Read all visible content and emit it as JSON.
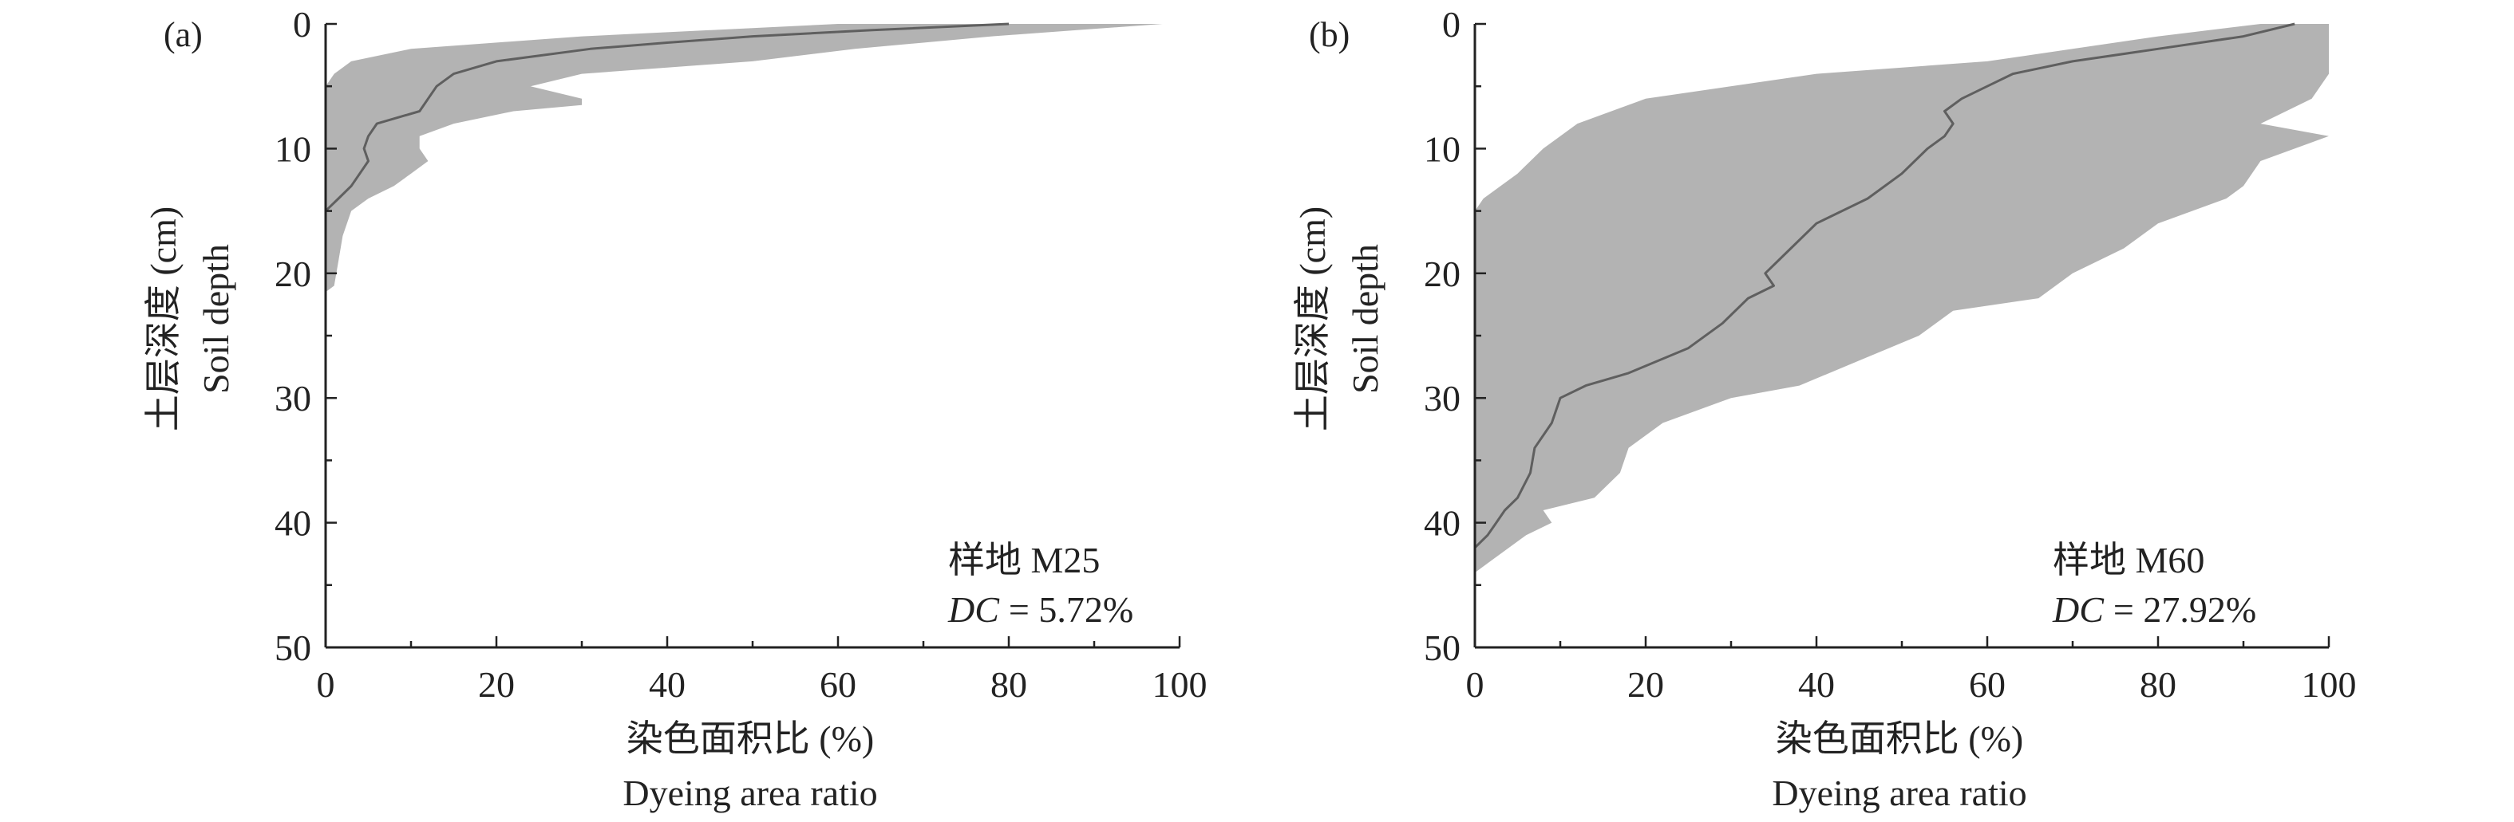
{
  "colors": {
    "band": "#b3b3b3",
    "mean_line": "#5f5f5f",
    "axis": "#222222",
    "background": "#ffffff"
  },
  "chart_data": [
    {
      "type": "area",
      "panel_label": "(a)",
      "plot": "样地 M25",
      "dc_label": "DC",
      "dc_value": "= 5.72%",
      "xlabel_cn": "染色面积比 (%)",
      "xlabel_en": "Dyeing area ratio",
      "ylabel_cn": "土层深度 (cm)",
      "ylabel_en": "Soil depth",
      "xlim": [
        0,
        100
      ],
      "ylim": [
        0,
        50
      ],
      "y_inverted": true,
      "x_ticks": [
        "0",
        "20",
        "40",
        "60",
        "80",
        "100"
      ],
      "y_ticks": [
        "0",
        "10",
        "20",
        "30",
        "40",
        "50"
      ],
      "grid": false,
      "mean_profile": [
        {
          "depth": 0,
          "ratio": 80
        },
        {
          "depth": 0.5,
          "ratio": 64
        },
        {
          "depth": 1,
          "ratio": 50
        },
        {
          "depth": 1.5,
          "ratio": 40
        },
        {
          "depth": 2,
          "ratio": 31
        },
        {
          "depth": 3,
          "ratio": 20
        },
        {
          "depth": 4,
          "ratio": 15
        },
        {
          "depth": 5,
          "ratio": 13
        },
        {
          "depth": 6,
          "ratio": 12
        },
        {
          "depth": 7,
          "ratio": 11
        },
        {
          "depth": 8,
          "ratio": 6
        },
        {
          "depth": 9,
          "ratio": 5
        },
        {
          "depth": 10,
          "ratio": 4.5
        },
        {
          "depth": 11,
          "ratio": 5
        },
        {
          "depth": 12,
          "ratio": 4
        },
        {
          "depth": 13,
          "ratio": 3
        },
        {
          "depth": 14,
          "ratio": 1.5
        },
        {
          "depth": 15,
          "ratio": 0
        }
      ],
      "band_max": [
        {
          "depth": 0,
          "ratio": 98
        },
        {
          "depth": 0.5,
          "ratio": 88
        },
        {
          "depth": 1,
          "ratio": 78
        },
        {
          "depth": 1.5,
          "ratio": 70
        },
        {
          "depth": 2,
          "ratio": 62
        },
        {
          "depth": 3,
          "ratio": 50
        },
        {
          "depth": 3.5,
          "ratio": 40
        },
        {
          "depth": 4,
          "ratio": 30
        },
        {
          "depth": 5,
          "ratio": 24
        },
        {
          "depth": 6,
          "ratio": 30
        },
        {
          "depth": 6.5,
          "ratio": 30
        },
        {
          "depth": 7,
          "ratio": 22
        },
        {
          "depth": 8,
          "ratio": 15
        },
        {
          "depth": 9,
          "ratio": 11
        },
        {
          "depth": 10,
          "ratio": 11
        },
        {
          "depth": 11,
          "ratio": 12
        },
        {
          "depth": 12,
          "ratio": 10
        },
        {
          "depth": 13,
          "ratio": 8
        },
        {
          "depth": 14,
          "ratio": 5
        },
        {
          "depth": 15,
          "ratio": 3
        },
        {
          "depth": 17,
          "ratio": 2
        },
        {
          "depth": 19,
          "ratio": 1.5
        },
        {
          "depth": 21,
          "ratio": 1
        },
        {
          "depth": 21.5,
          "ratio": 0
        }
      ],
      "band_min": [
        {
          "depth": 0,
          "ratio": 60
        },
        {
          "depth": 1,
          "ratio": 30
        },
        {
          "depth": 2,
          "ratio": 10
        },
        {
          "depth": 3,
          "ratio": 3
        },
        {
          "depth": 4,
          "ratio": 1
        },
        {
          "depth": 5,
          "ratio": 0
        },
        {
          "depth": 21.5,
          "ratio": 0
        }
      ]
    },
    {
      "type": "area",
      "panel_label": "(b)",
      "plot": "样地 M60",
      "dc_label": "DC",
      "dc_value": "= 27.92%",
      "xlabel_cn": "染色面积比 (%)",
      "xlabel_en": "Dyeing area ratio",
      "ylabel_cn": "土层深度 (cm)",
      "ylabel_en": "Soil depth",
      "xlim": [
        0,
        100
      ],
      "ylim": [
        0,
        50
      ],
      "y_inverted": true,
      "x_ticks": [
        "0",
        "20",
        "40",
        "60",
        "80",
        "100"
      ],
      "y_ticks": [
        "0",
        "10",
        "20",
        "30",
        "40",
        "50"
      ],
      "grid": false,
      "mean_profile": [
        {
          "depth": 0,
          "ratio": 96
        },
        {
          "depth": 1,
          "ratio": 90
        },
        {
          "depth": 2,
          "ratio": 80
        },
        {
          "depth": 3,
          "ratio": 70
        },
        {
          "depth": 4,
          "ratio": 63
        },
        {
          "depth": 5,
          "ratio": 60
        },
        {
          "depth": 6,
          "ratio": 57
        },
        {
          "depth": 7,
          "ratio": 55
        },
        {
          "depth": 8,
          "ratio": 56
        },
        {
          "depth": 9,
          "ratio": 55
        },
        {
          "depth": 10,
          "ratio": 53
        },
        {
          "depth": 12,
          "ratio": 50
        },
        {
          "depth": 14,
          "ratio": 46
        },
        {
          "depth": 16,
          "ratio": 40
        },
        {
          "depth": 18,
          "ratio": 37
        },
        {
          "depth": 20,
          "ratio": 34
        },
        {
          "depth": 21,
          "ratio": 35
        },
        {
          "depth": 22,
          "ratio": 32
        },
        {
          "depth": 24,
          "ratio": 29
        },
        {
          "depth": 26,
          "ratio": 25
        },
        {
          "depth": 28,
          "ratio": 18
        },
        {
          "depth": 29,
          "ratio": 13
        },
        {
          "depth": 30,
          "ratio": 10
        },
        {
          "depth": 32,
          "ratio": 9
        },
        {
          "depth": 34,
          "ratio": 7
        },
        {
          "depth": 36,
          "ratio": 6.5
        },
        {
          "depth": 38,
          "ratio": 5
        },
        {
          "depth": 39,
          "ratio": 3.5
        },
        {
          "depth": 40,
          "ratio": 2.5
        },
        {
          "depth": 41,
          "ratio": 1.5
        },
        {
          "depth": 42,
          "ratio": 0
        }
      ],
      "band_max": [
        {
          "depth": 0,
          "ratio": 100
        },
        {
          "depth": 4,
          "ratio": 100
        },
        {
          "depth": 6,
          "ratio": 98
        },
        {
          "depth": 8,
          "ratio": 92
        },
        {
          "depth": 9,
          "ratio": 100
        },
        {
          "depth": 11,
          "ratio": 92
        },
        {
          "depth": 13,
          "ratio": 90
        },
        {
          "depth": 14,
          "ratio": 88
        },
        {
          "depth": 16,
          "ratio": 80
        },
        {
          "depth": 18,
          "ratio": 76
        },
        {
          "depth": 20,
          "ratio": 70
        },
        {
          "depth": 22,
          "ratio": 66
        },
        {
          "depth": 23,
          "ratio": 56
        },
        {
          "depth": 25,
          "ratio": 52
        },
        {
          "depth": 27,
          "ratio": 45
        },
        {
          "depth": 29,
          "ratio": 38
        },
        {
          "depth": 30,
          "ratio": 30
        },
        {
          "depth": 32,
          "ratio": 22
        },
        {
          "depth": 34,
          "ratio": 18
        },
        {
          "depth": 36,
          "ratio": 17
        },
        {
          "depth": 38,
          "ratio": 14
        },
        {
          "depth": 39,
          "ratio": 8
        },
        {
          "depth": 40,
          "ratio": 9
        },
        {
          "depth": 41,
          "ratio": 6
        },
        {
          "depth": 42,
          "ratio": 4
        },
        {
          "depth": 43,
          "ratio": 2
        },
        {
          "depth": 44,
          "ratio": 0
        }
      ],
      "band_min": [
        {
          "depth": 0,
          "ratio": 92
        },
        {
          "depth": 1,
          "ratio": 80
        },
        {
          "depth": 2,
          "ratio": 70
        },
        {
          "depth": 3,
          "ratio": 60
        },
        {
          "depth": 4,
          "ratio": 40
        },
        {
          "depth": 6,
          "ratio": 20
        },
        {
          "depth": 8,
          "ratio": 12
        },
        {
          "depth": 10,
          "ratio": 8
        },
        {
          "depth": 12,
          "ratio": 5
        },
        {
          "depth": 14,
          "ratio": 1
        },
        {
          "depth": 15,
          "ratio": 0
        },
        {
          "depth": 44,
          "ratio": 0
        }
      ]
    }
  ]
}
